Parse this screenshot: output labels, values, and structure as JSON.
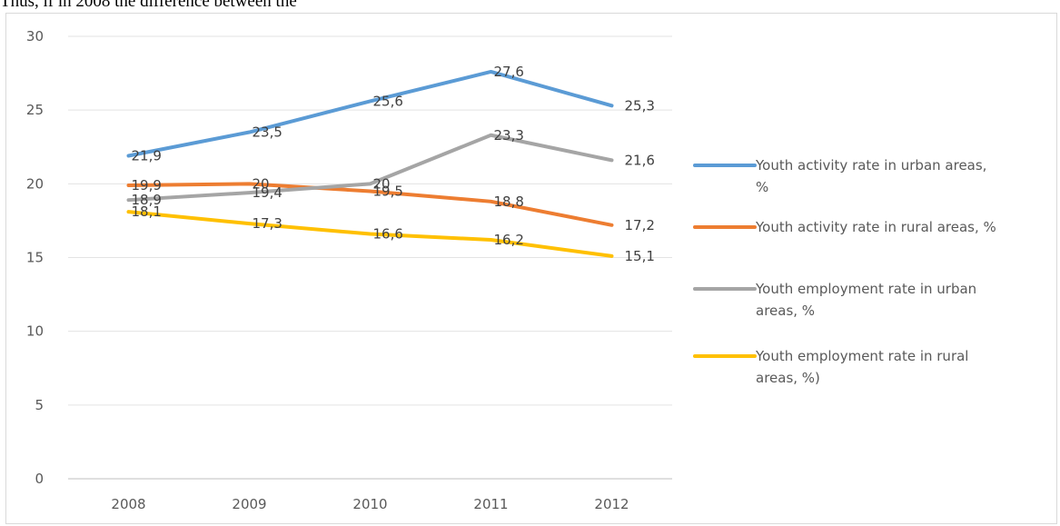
{
  "header_text": "Thus, if in 2008 the difference between the",
  "chart_data": {
    "type": "line",
    "title": "",
    "xlabel": "",
    "ylabel": "",
    "ylim": [
      0,
      30
    ],
    "yticks": [
      0,
      5,
      10,
      15,
      20,
      25,
      30
    ],
    "grid": true,
    "legend_position": "right",
    "categories": [
      "2008",
      "2009",
      "2010",
      "2011",
      "2012"
    ],
    "series": [
      {
        "name": "Youth activity rate in urban areas, %",
        "legend_lines": [
          "Youth activity rate in urban areas,",
          "%"
        ],
        "color": "#5b9bd5",
        "values": [
          21.9,
          23.5,
          25.6,
          27.6,
          25.3
        ],
        "labels": [
          "21,9",
          "23,5",
          "25,6",
          "27,6",
          "25,3"
        ]
      },
      {
        "name": "Youth activity rate in rural areas, %",
        "legend_lines": [
          "Youth activity rate in rural areas, %"
        ],
        "color": "#ed7d31",
        "values": [
          19.9,
          20,
          19.5,
          18.8,
          17.2
        ],
        "labels": [
          "19,9",
          "20",
          "19,5",
          "18,8",
          "17,2"
        ]
      },
      {
        "name": "Youth employment rate in urban areas, %",
        "legend_lines": [
          "Youth employment rate in urban",
          "areas, %"
        ],
        "color": "#a5a5a5",
        "values": [
          18.9,
          19.4,
          20,
          23.3,
          21.6
        ],
        "labels": [
          "18,9",
          "19,4",
          "20",
          "23,3",
          "21,6"
        ]
      },
      {
        "name": "Youth employment rate in rural areas, %)",
        "legend_lines": [
          "Youth employment rate in rural",
          "areas, %)"
        ],
        "color": "#ffc000",
        "values": [
          18.1,
          17.3,
          16.6,
          16.2,
          15.1
        ],
        "labels": [
          "18,1",
          "17,3",
          "16,6",
          "16,2",
          "15,1"
        ]
      }
    ]
  }
}
